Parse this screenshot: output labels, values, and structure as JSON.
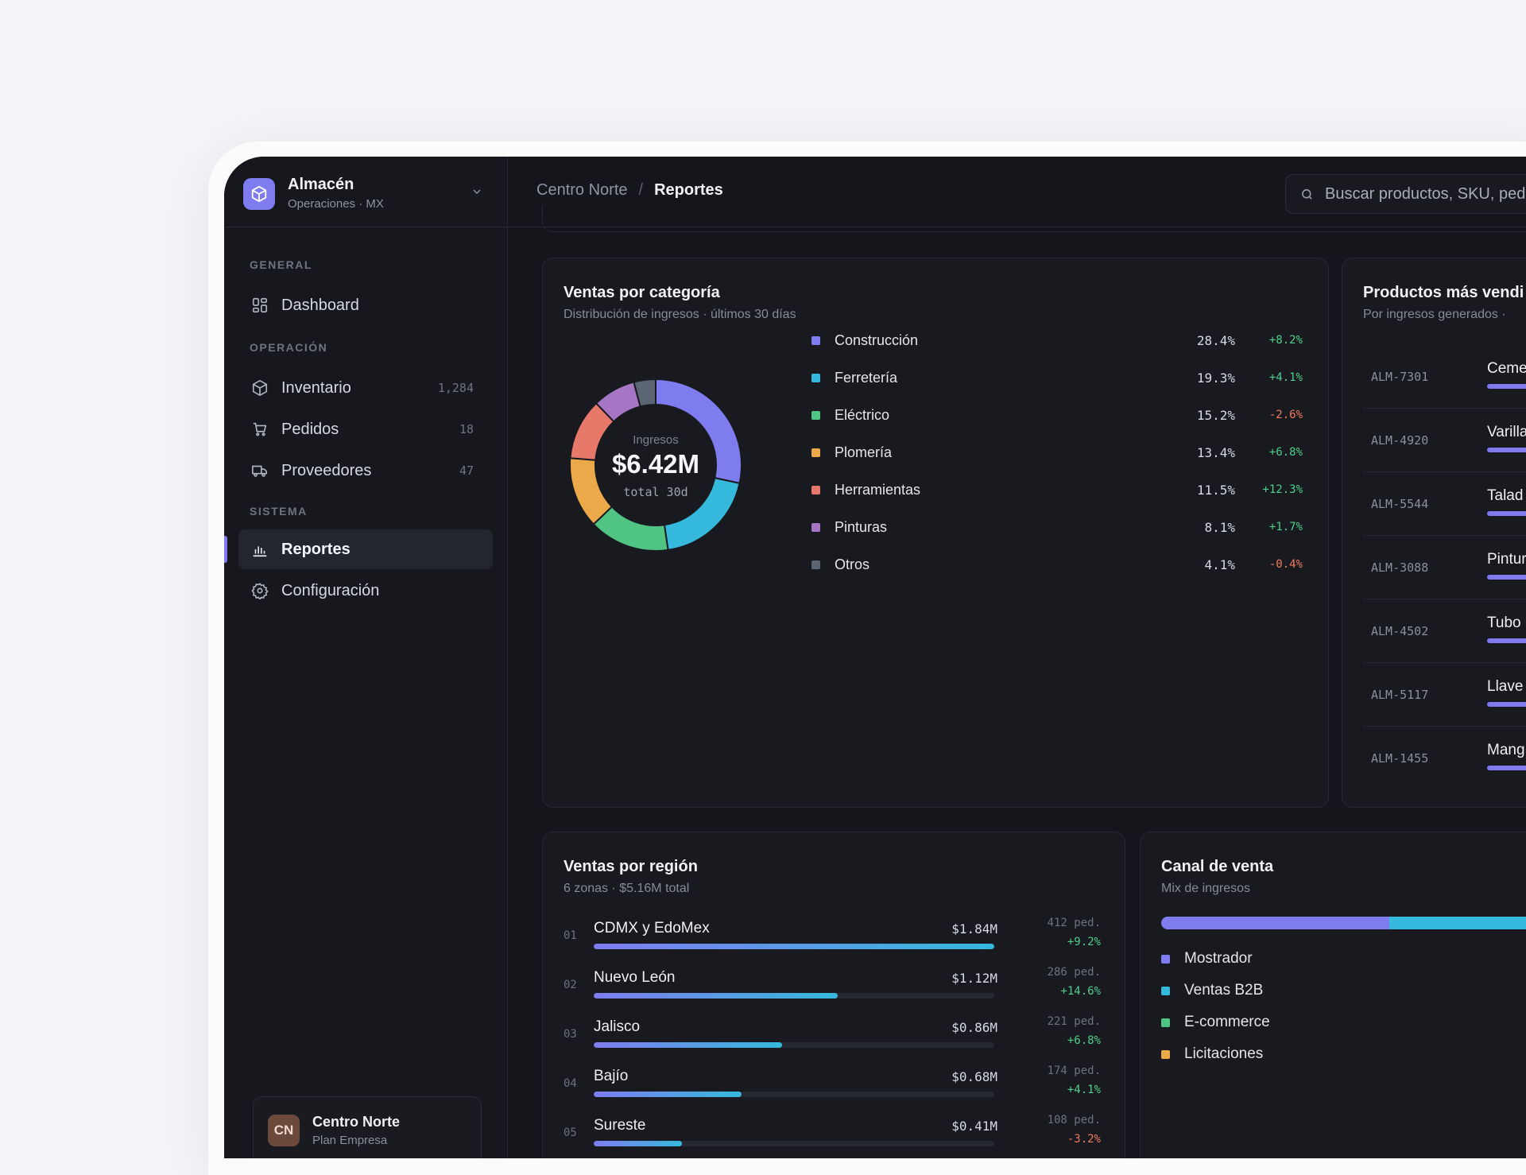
{
  "brand": {
    "name": "Almacén",
    "subtitle": "Operaciones · MX"
  },
  "nav": {
    "sections": [
      "GENERAL",
      "OPERACIÓN",
      "SISTEMA"
    ],
    "items": [
      {
        "label": "Dashboard"
      },
      {
        "label": "Inventario",
        "count": "1,284"
      },
      {
        "label": "Pedidos",
        "count": "18"
      },
      {
        "label": "Proveedores",
        "count": "47"
      },
      {
        "label": "Reportes"
      },
      {
        "label": "Configuración"
      }
    ]
  },
  "user": {
    "initials": "CN",
    "name": "Centro Norte",
    "plan": "Plan Empresa"
  },
  "breadcrumb": {
    "parent": "Centro Norte",
    "separator": "/",
    "current": "Reportes"
  },
  "search": {
    "placeholder": "Buscar productos, SKU, ped"
  },
  "category_card": {
    "title": "Ventas por categoría",
    "subtitle": "Distribución de ingresos · últimos 30 días",
    "center_label": "Ingresos",
    "center_value": "$6.42M",
    "center_caption": "total 30d"
  },
  "products_card": {
    "title": "Productos más vendi",
    "subtitle": "Por ingresos generados ·",
    "rows": [
      {
        "sku": "ALM-7301",
        "name": "Ceme"
      },
      {
        "sku": "ALM-4920",
        "name": "Varilla"
      },
      {
        "sku": "ALM-5544",
        "name": "Talad"
      },
      {
        "sku": "ALM-3088",
        "name": "Pintur"
      },
      {
        "sku": "ALM-4502",
        "name": "Tubo"
      },
      {
        "sku": "ALM-5117",
        "name": "Llave"
      },
      {
        "sku": "ALM-1455",
        "name": "Mang"
      }
    ]
  },
  "region_card": {
    "title": "Ventas por región",
    "subtitle": "6 zonas · $5.16M total",
    "rows": [
      {
        "num": "01",
        "name": "CDMX y EdoMex",
        "value": "$1.84M",
        "orders": "412 ped.",
        "change": "+9.2%",
        "share": 1.0
      },
      {
        "num": "02",
        "name": "Nuevo León",
        "value": "$1.12M",
        "orders": "286 ped.",
        "change": "+14.6%",
        "share": 0.61
      },
      {
        "num": "03",
        "name": "Jalisco",
        "value": "$0.86M",
        "orders": "221 ped.",
        "change": "+6.8%",
        "share": 0.47
      },
      {
        "num": "04",
        "name": "Bajío",
        "value": "$0.68M",
        "orders": "174 ped.",
        "change": "+4.1%",
        "share": 0.37
      },
      {
        "num": "05",
        "name": "Sureste",
        "value": "$0.41M",
        "orders": "108 ped.",
        "change": "-3.2%",
        "share": 0.22
      }
    ]
  },
  "channel_card": {
    "title": "Canal de venta",
    "subtitle": "Mix de ingresos",
    "items": [
      {
        "label": "Mostrador",
        "color": "#7f7cf0"
      },
      {
        "label": "Ventas B2B",
        "color": "#35b9dc"
      },
      {
        "label": "E-commerce",
        "color": "#4fc483"
      },
      {
        "label": "Licitaciones",
        "color": "#eba94a"
      }
    ]
  },
  "chart_data": {
    "type": "pie",
    "title": "Ventas por categoría",
    "categories": [
      "Construcción",
      "Ferretería",
      "Eléctrico",
      "Plomería",
      "Herramientas",
      "Pinturas",
      "Otros"
    ],
    "values": [
      28.4,
      19.3,
      15.2,
      13.4,
      11.5,
      8.1,
      4.1
    ],
    "labels": [
      "28.4%",
      "19.3%",
      "15.2%",
      "13.4%",
      "11.5%",
      "8.1%",
      "4.1%"
    ],
    "changes": [
      "+8.2%",
      "+4.1%",
      "-2.6%",
      "+6.8%",
      "+12.3%",
      "+1.7%",
      "-0.4%"
    ],
    "colors": [
      "#7f7cf0",
      "#35b9dc",
      "#4fc483",
      "#eba94a",
      "#e8786a",
      "#a676c4",
      "#5b6574"
    ],
    "legend": "right"
  }
}
